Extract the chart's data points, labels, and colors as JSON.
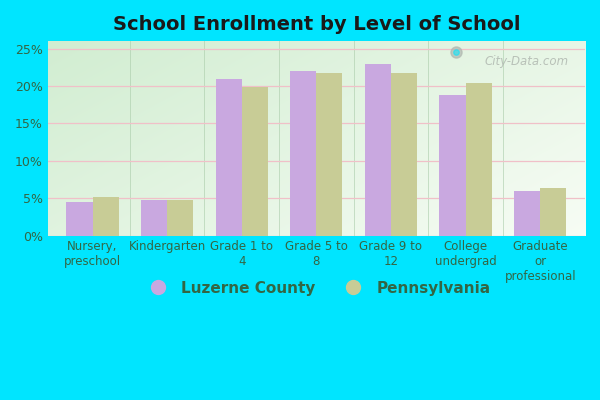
{
  "title": "School Enrollment by Level of School",
  "categories": [
    "Nursery,\npreschool",
    "Kindergarten",
    "Grade 1 to\n4",
    "Grade 5 to\n8",
    "Grade 9 to\n12",
    "College\nundergrad",
    "Graduate\nor\nprofessional"
  ],
  "luzerne": [
    4.5,
    4.8,
    21.0,
    22.0,
    23.0,
    18.8,
    6.0
  ],
  "pennsylvania": [
    5.1,
    4.8,
    19.8,
    21.8,
    21.7,
    20.4,
    6.4
  ],
  "luzerne_color": "#c9a8e0",
  "pennsylvania_color": "#c8cc96",
  "outer_bg": "#00e5ff",
  "title_fontsize": 14,
  "legend_fontsize": 11,
  "ylim": [
    0,
    26
  ],
  "yticks": [
    0,
    5,
    10,
    15,
    20,
    25
  ],
  "ytick_labels": [
    "0%",
    "5%",
    "10%",
    "15%",
    "20%",
    "25%"
  ],
  "watermark": "City-Data.com",
  "bar_width": 0.35,
  "grid_color": "#f0c0c8",
  "tick_color": "#336644"
}
